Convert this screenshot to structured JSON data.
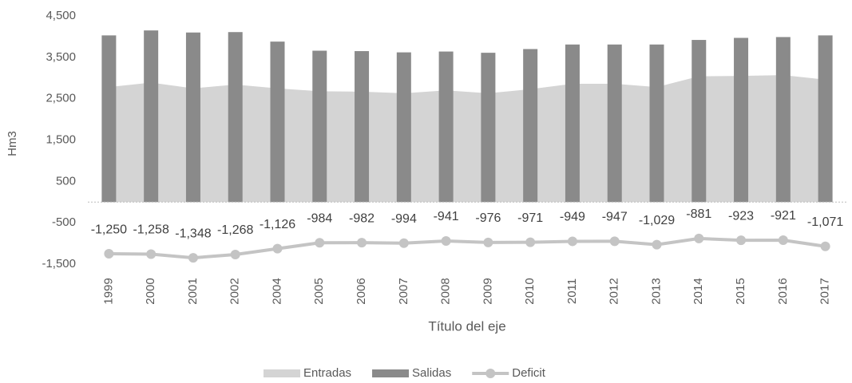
{
  "chart_data": {
    "type": "combo",
    "y_label": "Hm3",
    "x_label": "Título del eje",
    "categories": [
      "1999",
      "2000",
      "2001",
      "2002",
      "2004",
      "2005",
      "2006",
      "2007",
      "2008",
      "2009",
      "2010",
      "2011",
      "2012",
      "2013",
      "2014",
      "2015",
      "2016",
      "2017"
    ],
    "series": [
      {
        "name": "Entradas",
        "type": "area",
        "color": "#d4d4d4",
        "values": [
          2780,
          2890,
          2750,
          2840,
          2750,
          2680,
          2670,
          2630,
          2700,
          2630,
          2730,
          2860,
          2860,
          2780,
          3040,
          3050,
          3070,
          2960
        ]
      },
      {
        "name": "Salidas",
        "type": "bar",
        "color": "#8a8a8a",
        "values": [
          4030,
          4150,
          4100,
          4110,
          3880,
          3660,
          3650,
          3620,
          3640,
          3610,
          3700,
          3810,
          3810,
          3810,
          3920,
          3970,
          3990,
          4030
        ]
      },
      {
        "name": "Deficit",
        "type": "line",
        "color": "#c4c4c4",
        "values": [
          -1250,
          -1258,
          -1348,
          -1268,
          -1126,
          -984,
          -982,
          -994,
          -941,
          -976,
          -971,
          -949,
          -947,
          -1029,
          -881,
          -923,
          -921,
          -1071
        ],
        "value_labels": [
          "-1,250",
          "-1,258",
          "-1,348",
          "-1,268",
          "-1,126",
          "-984",
          "-982",
          "-994",
          "-941",
          "-976",
          "-971",
          "-949",
          "-947",
          "-1,029",
          "-881",
          "-923",
          "-921",
          "-1,071"
        ]
      }
    ],
    "ylim": [
      -1500,
      4500
    ],
    "yticks": [
      {
        "value": -1500,
        "label": "-1,500"
      },
      -500,
      500,
      {
        "value": 1500,
        "label": "1,500"
      },
      {
        "value": 2500,
        "label": "2,500"
      },
      {
        "value": 3500,
        "label": "3,500"
      },
      {
        "value": 4500,
        "label": "4,500"
      }
    ],
    "grid": false
  }
}
